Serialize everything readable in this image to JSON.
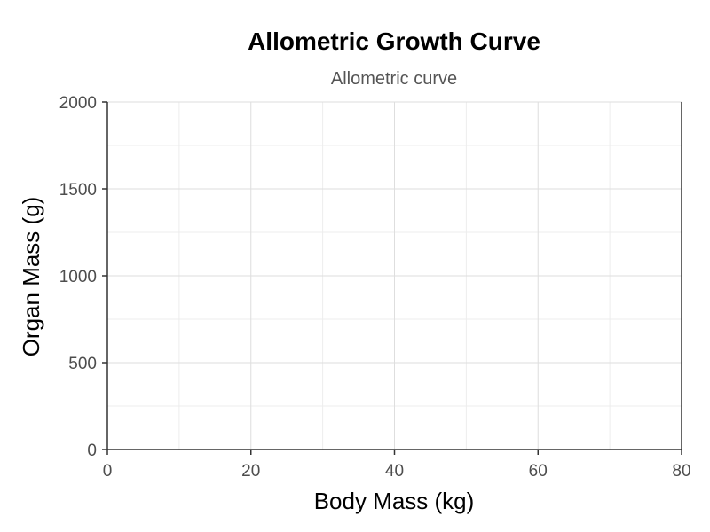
{
  "chart_data": {
    "type": "line",
    "title": "Allometric Growth Curve",
    "subtitle": "Allometric curve",
    "xlabel": "Body Mass (kg)",
    "ylabel": "Organ Mass (g)",
    "xlim": [
      0,
      80
    ],
    "ylim": [
      0,
      2000
    ],
    "x_ticks": [
      0,
      20,
      40,
      60,
      80
    ],
    "y_ticks": [
      0,
      500,
      1000,
      1500,
      2000
    ],
    "x_tick_labels": [
      "0",
      "20",
      "40",
      "60",
      "80"
    ],
    "y_tick_labels": [
      "0",
      "500",
      "1000",
      "1500",
      "2000"
    ],
    "x_minor_ticks": [
      10,
      30,
      50,
      70
    ],
    "y_minor_ticks": [
      250,
      750,
      1250,
      1750
    ],
    "grid": true,
    "series": []
  }
}
